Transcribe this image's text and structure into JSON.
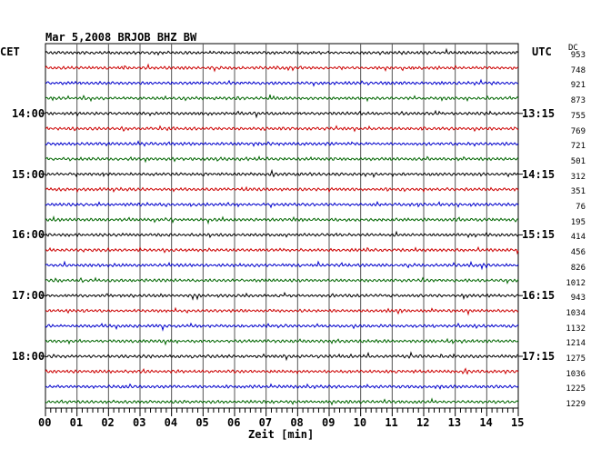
{
  "chart_data": {
    "type": "line",
    "title": "Mar 5,2008   BRJOB BHZ BW",
    "xlabel": "Zeit [min]",
    "left_label": "CET",
    "right_label": "UTC",
    "dc_label": "DC",
    "x_ticks": [
      "00",
      "01",
      "02",
      "03",
      "04",
      "05",
      "06",
      "07",
      "08",
      "09",
      "10",
      "11",
      "12",
      "13",
      "14",
      "15"
    ],
    "xlim": [
      0,
      15
    ],
    "left_time_labels": [
      "14:00",
      "15:00",
      "16:00",
      "17:00",
      "18:00"
    ],
    "right_time_labels": [
      "13:15",
      "14:15",
      "15:15",
      "16:15",
      "17:15"
    ],
    "dc_values": [
      "953",
      "748",
      "921",
      "873",
      "755",
      "769",
      "721",
      "501",
      "312",
      "351",
      "76",
      "195",
      "414",
      "456",
      "826",
      "1012",
      "943",
      "1034",
      "1132",
      "1214",
      "1275",
      "1036",
      "1225",
      "1229"
    ],
    "trace_colors": [
      "#000000",
      "#cc0000",
      "#0000cc",
      "#006600"
    ],
    "grid": true
  }
}
